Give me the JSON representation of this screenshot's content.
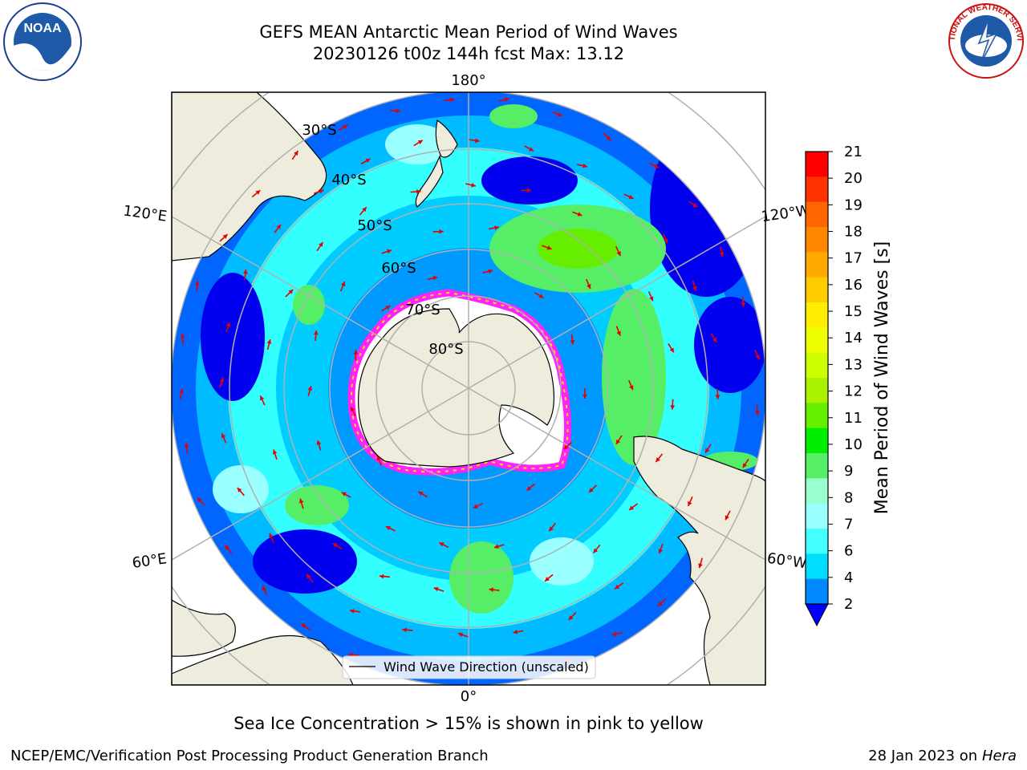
{
  "title_line1": "GEFS MEAN Antarctic Mean Period of Wind Waves",
  "title_line2": "20230126 t00z 144h fcst   Max: 13.12",
  "map": {
    "lon_labels": [
      "180°",
      "120°E",
      "120°W",
      "60°E",
      "60°W",
      "0°"
    ],
    "lat_labels": [
      "30°S",
      "40°S",
      "50°S",
      "60°S",
      "70°S",
      "80°S"
    ],
    "legend_label": "Wind Wave Direction (unscaled)",
    "colors": {
      "land": "#eeecdc",
      "coast": "#000000",
      "grid": "#b0b0b0",
      "arrow": "#e60000",
      "ice": [
        "#ff22ff",
        "#ffffff",
        "#ffe000"
      ]
    }
  },
  "colorbar": {
    "label": "Mean Period of Wind Waves [s]",
    "ticks": [
      "21",
      "20",
      "19",
      "18",
      "17",
      "16",
      "15",
      "14",
      "13",
      "12",
      "11",
      "10",
      "9",
      "8",
      "7",
      "6",
      "4",
      "2"
    ],
    "colors_top_to_bottom": [
      "#ff0000",
      "#ff3300",
      "#ff6600",
      "#ff8800",
      "#ffaa00",
      "#ffcc00",
      "#ffee00",
      "#f0ff00",
      "#ccff00",
      "#aaf200",
      "#66ee00",
      "#00ee00",
      "#55ee66",
      "#99ffcc",
      "#99ffff",
      "#44ffff",
      "#00ddff",
      "#0088ff"
    ],
    "extend_color": "#0000ff"
  },
  "ice_note": "Sea Ice Concentration > 15% is shown in pink to yellow",
  "footer_left": "NCEP/EMC/Verification Post Processing Product Generation Branch",
  "footer_date": "28 Jan 2023 on",
  "footer_machine": "Hera",
  "logos": {
    "left": "NOAA",
    "right": "NATIONAL WEATHER SERVICE"
  }
}
